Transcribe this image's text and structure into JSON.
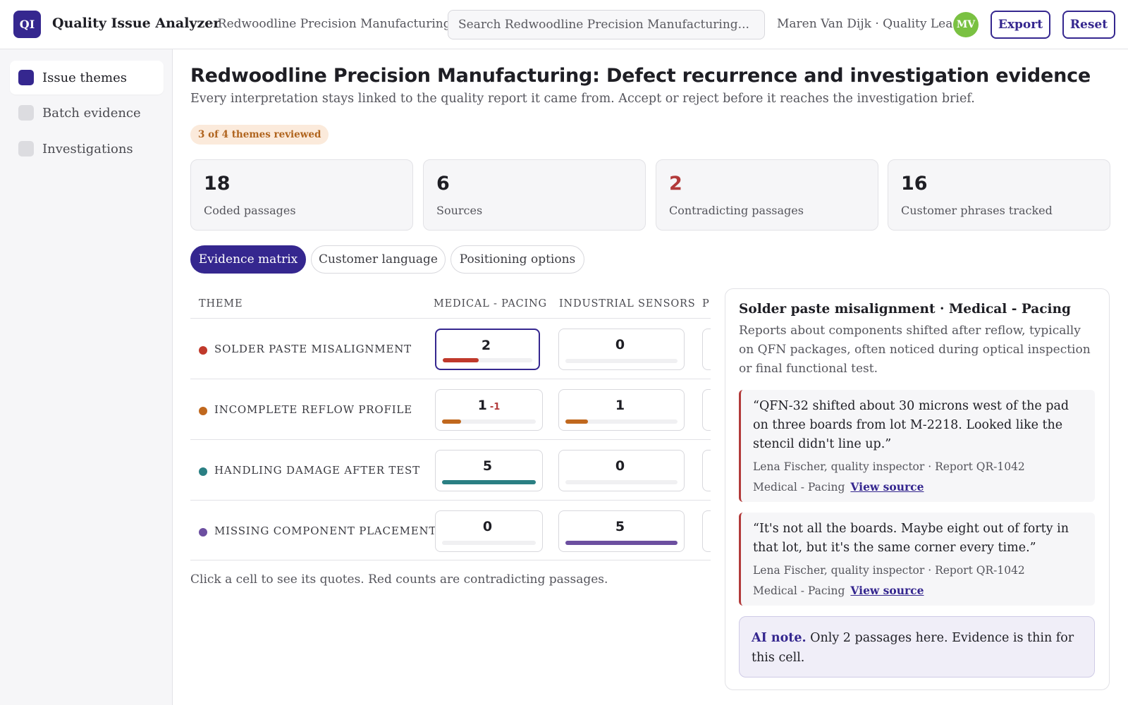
{
  "header": {
    "logo_text": "QI",
    "app_title": "Quality Issue Analyzer",
    "org_crumb": "· Redwoodline Precision Manufacturing",
    "search_placeholder": "Search Redwoodline Precision Manufacturing...",
    "user_label": "Maren Van Dijk · Quality Lead",
    "avatar_initials": "MV",
    "export_label": "Export",
    "reset_label": "Reset"
  },
  "sidebar": {
    "items": [
      {
        "label": "Issue themes",
        "active": true
      },
      {
        "label": "Batch evidence",
        "active": false
      },
      {
        "label": "Investigations",
        "active": false
      }
    ]
  },
  "main": {
    "title": "Redwoodline Precision Manufacturing: Defect recurrence and investigation evidence",
    "subtitle": "Every interpretation stays linked to the quality report it came from. Accept or reject before it reaches the investigation brief.",
    "review_badge": "3 of 4 themes reviewed",
    "stats": [
      {
        "value": "18",
        "label": "Coded passages"
      },
      {
        "value": "6",
        "label": "Sources"
      },
      {
        "value": "2",
        "label": "Contradicting passages"
      },
      {
        "value": "16",
        "label": "Customer phrases tracked"
      }
    ],
    "tabs": [
      {
        "label": "Evidence matrix",
        "active": true
      },
      {
        "label": "Customer language",
        "active": false
      },
      {
        "label": "Positioning options",
        "active": false
      }
    ]
  },
  "matrix": {
    "headers": {
      "theme": "THEME",
      "col1": "MEDICAL - PACING",
      "col2": "INDUSTRIAL SENSORS",
      "col3": "P"
    },
    "scale_max": 5,
    "rows": [
      {
        "theme": "SOLDER PASTE MISALIGNMENT",
        "color": "#c0392b",
        "cells": [
          {
            "count": "2",
            "value": 2,
            "contradictions": ""
          },
          {
            "count": "0",
            "value": 0,
            "contradictions": ""
          }
        ]
      },
      {
        "theme": "INCOMPLETE REFLOW PROFILE",
        "color": "#c0681e",
        "cells": [
          {
            "count": "1",
            "value": 1,
            "contradictions": "-1"
          },
          {
            "count": "1",
            "value": 1,
            "contradictions": ""
          }
        ]
      },
      {
        "theme": "HANDLING DAMAGE AFTER TEST",
        "color": "#2a7f83",
        "cells": [
          {
            "count": "5",
            "value": 5,
            "contradictions": ""
          },
          {
            "count": "0",
            "value": 0,
            "contradictions": ""
          }
        ]
      },
      {
        "theme": "MISSING COMPONENT PLACEMENT",
        "color": "#6c4fa0",
        "cells": [
          {
            "count": "0",
            "value": 0,
            "contradictions": ""
          },
          {
            "count": "5",
            "value": 5,
            "contradictions": ""
          }
        ]
      }
    ],
    "hint": "Click a cell to see its quotes. Red counts are contradicting passages."
  },
  "detail": {
    "title": "Solder paste misalignment · Medical - Pacing",
    "description": "Reports about components shifted after reflow, typically on QFN packages, often noticed during optical inspection or final functional test.",
    "quotes": [
      {
        "text": "“QFN-32 shifted about 30 microns west of the pad on three boards from lot M-2218. Looked like the stencil didn't line up.”",
        "attribution": "Lena Fischer, quality inspector · Report QR-1042",
        "segment": "Medical - Pacing",
        "link": "View source"
      },
      {
        "text": "“It's not all the boards. Maybe eight out of forty in that lot, but it's the same corner every time.”",
        "attribution": "Lena Fischer, quality inspector · Report QR-1042",
        "segment": "Medical - Pacing",
        "link": "View source"
      }
    ],
    "ai_note_label": "AI note.",
    "ai_note_text": " Only 2 passages here. Evidence is thin for this cell."
  },
  "colors": {
    "accent": "#35278f",
    "warning": "#b23a3a",
    "avatar": "#7ac142"
  }
}
